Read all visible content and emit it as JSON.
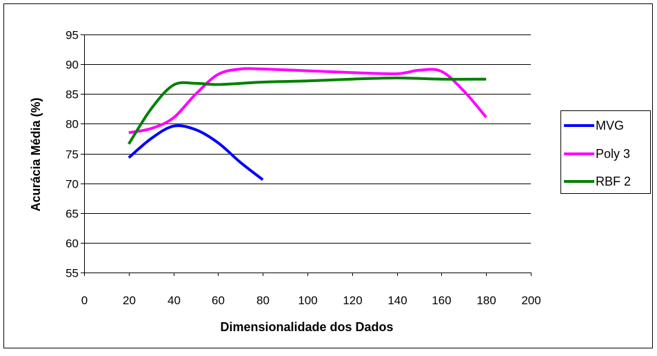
{
  "chart_data": {
    "type": "line",
    "title": "",
    "xlabel": "Dimensionalidade dos Dados",
    "ylabel": "Acurácia Média (%)",
    "xlim": [
      0,
      200
    ],
    "ylim": [
      55,
      95
    ],
    "xticks": [
      0,
      20,
      40,
      60,
      80,
      100,
      120,
      140,
      160,
      180,
      200
    ],
    "yticks": [
      55,
      60,
      65,
      70,
      75,
      80,
      85,
      90,
      95
    ],
    "grid": "horizontal",
    "legend_position": "right",
    "series": [
      {
        "name": "MVG",
        "color": "#0000ff",
        "x": [
          20,
          30,
          40,
          50,
          60,
          70,
          80
        ],
        "values": [
          74.3,
          77.5,
          79.6,
          79.0,
          76.8,
          73.5,
          70.6
        ]
      },
      {
        "name": "Poly 3",
        "color": "#ff00ff",
        "x": [
          20,
          30,
          40,
          50,
          60,
          70,
          80,
          100,
          120,
          140,
          150,
          160,
          170,
          180
        ],
        "values": [
          78.5,
          79.2,
          81.0,
          85.0,
          88.3,
          89.2,
          89.2,
          88.9,
          88.6,
          88.4,
          89.0,
          88.8,
          85.5,
          81.1
        ]
      },
      {
        "name": "RBF 2",
        "color": "#008000",
        "x": [
          20,
          30,
          40,
          50,
          60,
          80,
          100,
          120,
          140,
          160,
          180
        ],
        "values": [
          76.6,
          82.5,
          86.5,
          86.8,
          86.6,
          87.0,
          87.2,
          87.5,
          87.7,
          87.5,
          87.5
        ]
      }
    ]
  }
}
